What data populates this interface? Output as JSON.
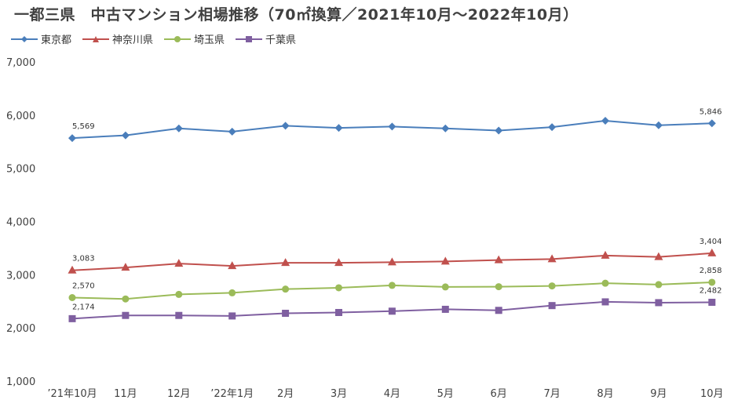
{
  "chart_data": {
    "type": "line",
    "title": "一都三県　中古マンション相場推移（70㎡換算／2021年10月～2022年10月）",
    "categories": [
      "’21年10月",
      "11月",
      "12月",
      "’22年1月",
      "2月",
      "3月",
      "4月",
      "5月",
      "6月",
      "7月",
      "8月",
      "9月",
      "10月"
    ],
    "ylim": [
      1000,
      7000
    ],
    "yticks": [
      "1,000",
      "2,000",
      "3,000",
      "4,000",
      "5,000",
      "6,000",
      "7,000"
    ],
    "grid": false,
    "legend": "top-left",
    "series": [
      {
        "name": "東京都",
        "color": "#4a7ebb",
        "marker": "diamond",
        "values": [
          5569,
          5620,
          5750,
          5690,
          5800,
          5760,
          5785,
          5750,
          5710,
          5775,
          5895,
          5810,
          5846
        ],
        "labels": {
          "0": "5,569",
          "12": "5,846"
        }
      },
      {
        "name": "神奈川県",
        "color": "#c0504d",
        "marker": "triangle",
        "values": [
          3083,
          3135,
          3210,
          3165,
          3225,
          3225,
          3235,
          3250,
          3275,
          3295,
          3360,
          3335,
          3404
        ],
        "labels": {
          "0": "3,083",
          "12": "3,404"
        }
      },
      {
        "name": "埼玉県",
        "color": "#9bbb59",
        "marker": "circle",
        "values": [
          2570,
          2545,
          2630,
          2660,
          2730,
          2755,
          2800,
          2770,
          2775,
          2790,
          2840,
          2815,
          2858
        ],
        "labels": {
          "0": "2,570",
          "12": "2,858"
        }
      },
      {
        "name": "千葉県",
        "color": "#7f5fa0",
        "marker": "square",
        "values": [
          2174,
          2235,
          2235,
          2225,
          2275,
          2290,
          2315,
          2350,
          2330,
          2420,
          2490,
          2475,
          2482
        ],
        "labels": {
          "0": "2,174",
          "12": "2,482"
        }
      }
    ]
  }
}
